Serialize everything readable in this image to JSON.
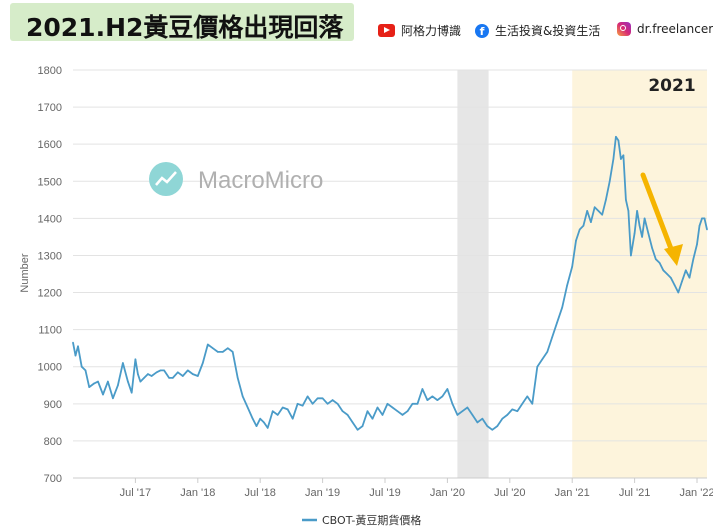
{
  "header": {
    "title": "2021.H2黃豆價格出現回落",
    "social": [
      {
        "icon": "youtube-icon",
        "label": "阿格力博識"
      },
      {
        "icon": "facebook-icon",
        "label": "生活投資&投資生活"
      },
      {
        "icon": "instagram-icon",
        "label": "dr.freelancer"
      }
    ]
  },
  "watermark": "MacroMicro",
  "highlight_label": "2021",
  "colors": {
    "line": "#4a9bc8",
    "arrow": "#f5b400",
    "highlight": "#fdf4dc",
    "recession": "#e6e6e6"
  },
  "chart_data": {
    "type": "line",
    "ylabel": "Number",
    "ylim": [
      700,
      1800
    ],
    "yticks": [
      700,
      800,
      900,
      1000,
      1100,
      1200,
      1300,
      1400,
      1500,
      1600,
      1700,
      1800
    ],
    "xticks": [
      {
        "label": "Jul '17",
        "pos": 2017.5
      },
      {
        "label": "Jan '18",
        "pos": 2018.0
      },
      {
        "label": "Jul '18",
        "pos": 2018.5
      },
      {
        "label": "Jan '19",
        "pos": 2019.0
      },
      {
        "label": "Jul '19",
        "pos": 2019.5
      },
      {
        "label": "Jan '20",
        "pos": 2020.0
      },
      {
        "label": "Jul '20",
        "pos": 2020.5
      },
      {
        "label": "Jan '21",
        "pos": 2021.0
      },
      {
        "label": "Jul '21",
        "pos": 2021.5
      },
      {
        "label": "Jan '22",
        "pos": 2022.0
      }
    ],
    "xlim": [
      2017.0,
      2022.08
    ],
    "shaded_recession": [
      2020.08,
      2020.33
    ],
    "shaded_highlight": [
      2021.0,
      2022.08
    ],
    "series": [
      {
        "name": "CBOT-黃豆期貨價格",
        "x": [
          2017.0,
          2017.02,
          2017.04,
          2017.07,
          2017.1,
          2017.13,
          2017.17,
          2017.2,
          2017.24,
          2017.28,
          2017.32,
          2017.36,
          2017.4,
          2017.44,
          2017.47,
          2017.5,
          2017.52,
          2017.54,
          2017.57,
          2017.6,
          2017.63,
          2017.67,
          2017.7,
          2017.73,
          2017.77,
          2017.8,
          2017.84,
          2017.88,
          2017.92,
          2017.96,
          2018.0,
          2018.04,
          2018.08,
          2018.12,
          2018.16,
          2018.2,
          2018.24,
          2018.28,
          2018.32,
          2018.36,
          2018.4,
          2018.44,
          2018.47,
          2018.5,
          2018.53,
          2018.56,
          2018.6,
          2018.64,
          2018.68,
          2018.72,
          2018.76,
          2018.8,
          2018.84,
          2018.88,
          2018.92,
          2018.96,
          2019.0,
          2019.04,
          2019.08,
          2019.12,
          2019.16,
          2019.2,
          2019.24,
          2019.28,
          2019.32,
          2019.36,
          2019.4,
          2019.44,
          2019.48,
          2019.52,
          2019.56,
          2019.6,
          2019.64,
          2019.68,
          2019.72,
          2019.76,
          2019.8,
          2019.84,
          2019.88,
          2019.92,
          2019.96,
          2020.0,
          2020.04,
          2020.08,
          2020.12,
          2020.16,
          2020.2,
          2020.24,
          2020.28,
          2020.32,
          2020.36,
          2020.4,
          2020.44,
          2020.48,
          2020.52,
          2020.56,
          2020.6,
          2020.64,
          2020.68,
          2020.72,
          2020.76,
          2020.8,
          2020.84,
          2020.88,
          2020.92,
          2020.96,
          2021.0,
          2021.03,
          2021.06,
          2021.09,
          2021.12,
          2021.15,
          2021.18,
          2021.21,
          2021.24,
          2021.27,
          2021.3,
          2021.33,
          2021.35,
          2021.37,
          2021.39,
          2021.41,
          2021.43,
          2021.45,
          2021.47,
          2021.5,
          2021.52,
          2021.54,
          2021.56,
          2021.58,
          2021.61,
          2021.64,
          2021.67,
          2021.7,
          2021.73,
          2021.76,
          2021.79,
          2021.82,
          2021.85,
          2021.88,
          2021.91,
          2021.94,
          2021.97,
          2022.0,
          2022.02,
          2022.04,
          2022.06,
          2022.08
        ],
        "y": [
          1065,
          1030,
          1055,
          1000,
          990,
          945,
          955,
          960,
          925,
          960,
          915,
          950,
          1010,
          960,
          930,
          1020,
          980,
          960,
          970,
          980,
          975,
          985,
          990,
          990,
          970,
          970,
          985,
          975,
          990,
          980,
          975,
          1010,
          1060,
          1050,
          1040,
          1040,
          1050,
          1040,
          970,
          920,
          890,
          860,
          840,
          860,
          850,
          835,
          880,
          870,
          890,
          885,
          860,
          900,
          895,
          920,
          900,
          915,
          915,
          900,
          910,
          900,
          880,
          870,
          850,
          830,
          840,
          880,
          860,
          890,
          870,
          900,
          890,
          880,
          870,
          880,
          900,
          900,
          940,
          910,
          920,
          910,
          920,
          940,
          900,
          870,
          880,
          890,
          870,
          850,
          860,
          840,
          830,
          840,
          860,
          870,
          885,
          880,
          900,
          920,
          900,
          1000,
          1020,
          1040,
          1080,
          1120,
          1160,
          1220,
          1270,
          1340,
          1370,
          1380,
          1420,
          1390,
          1430,
          1420,
          1410,
          1450,
          1500,
          1560,
          1620,
          1610,
          1560,
          1570,
          1450,
          1420,
          1300,
          1360,
          1420,
          1380,
          1350,
          1400,
          1360,
          1320,
          1290,
          1280,
          1260,
          1250,
          1240,
          1220,
          1200,
          1230,
          1260,
          1240,
          1290,
          1330,
          1380,
          1400,
          1400,
          1370
        ]
      }
    ],
    "legend": "bottom-center",
    "grid": true
  }
}
